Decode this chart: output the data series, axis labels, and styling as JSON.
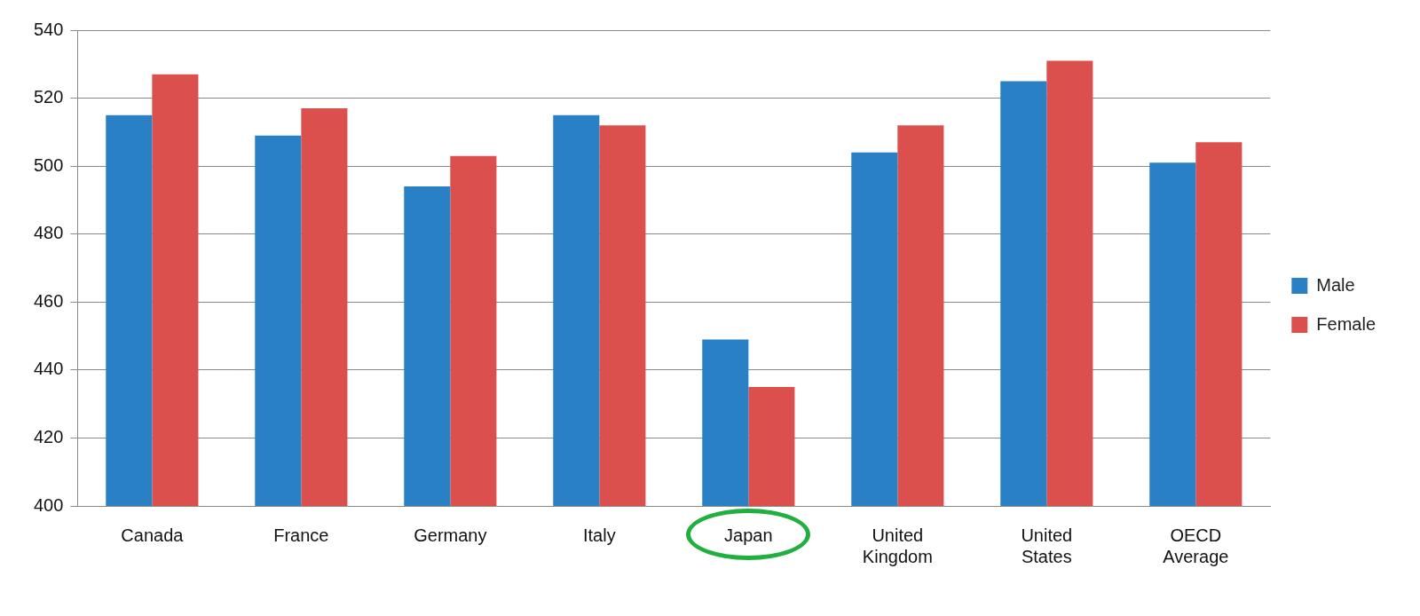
{
  "chart_data": {
    "type": "bar",
    "categories": [
      "Canada",
      "France",
      "Germany",
      "Italy",
      "Japan",
      "United Kingdom",
      "United States",
      "OECD Average"
    ],
    "series": [
      {
        "name": "Male",
        "color": "#2a80c4",
        "values": [
          515,
          509,
          494,
          515,
          449,
          504,
          525,
          501
        ]
      },
      {
        "name": "Female",
        "color": "#db4f4d",
        "values": [
          527,
          517,
          503,
          512,
          435,
          512,
          531,
          507
        ]
      }
    ],
    "ylim": [
      400,
      540
    ],
    "yticks": [
      400,
      420,
      440,
      460,
      480,
      500,
      520,
      540
    ],
    "grid": "y",
    "legend": "right"
  }
}
